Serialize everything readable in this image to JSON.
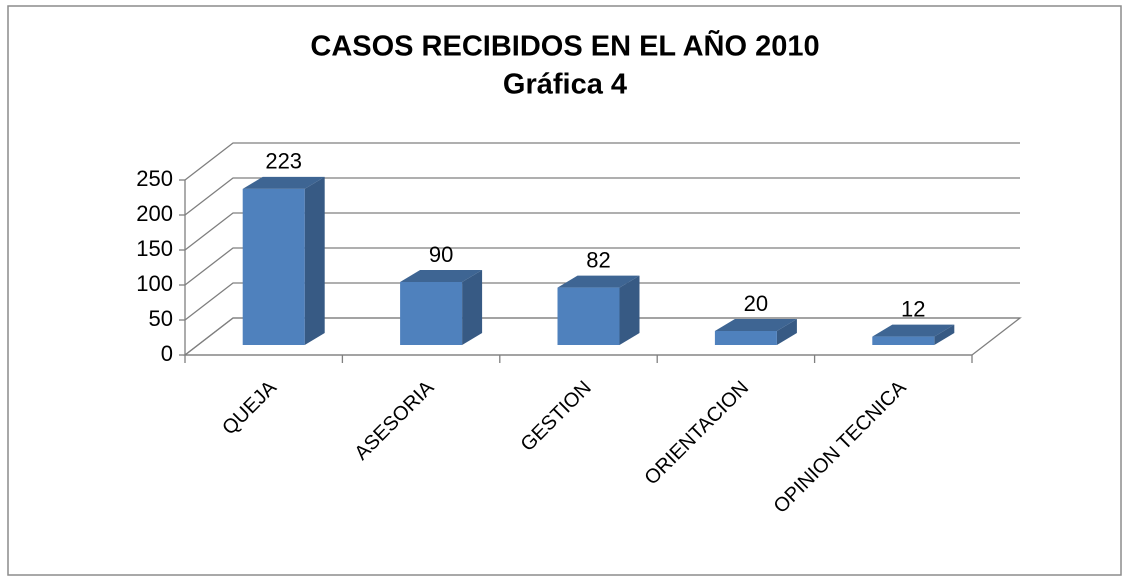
{
  "chart_data": {
    "type": "bar3d",
    "title": "CASOS RECIBIDOS EN EL AÑO 2010",
    "subtitle": "Gráfica 4",
    "categories": [
      "QUEJA",
      "ASESORIA",
      "GESTION",
      "ORIENTACION",
      "OPINION TECNICA"
    ],
    "values": [
      223,
      90,
      82,
      20,
      12
    ],
    "color": "#4f81bd",
    "ylim": [
      0,
      250
    ],
    "yticks": [
      0,
      50,
      100,
      150,
      200,
      250
    ],
    "grid": true
  }
}
